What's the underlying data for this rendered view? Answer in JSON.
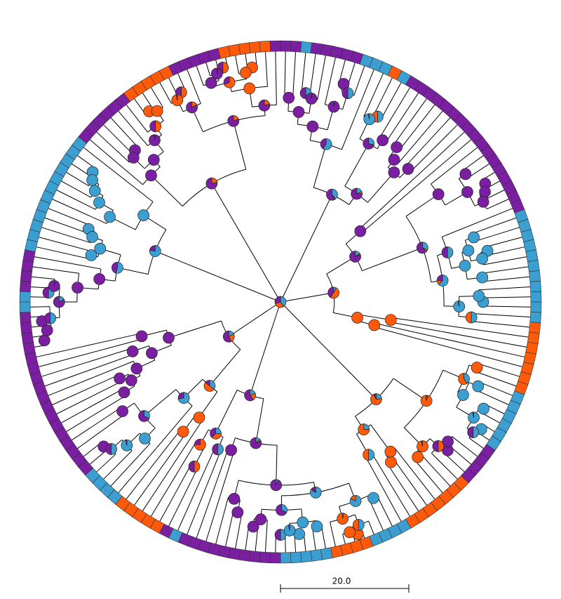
{
  "scale_bar": {
    "label": "20.0"
  }
}
